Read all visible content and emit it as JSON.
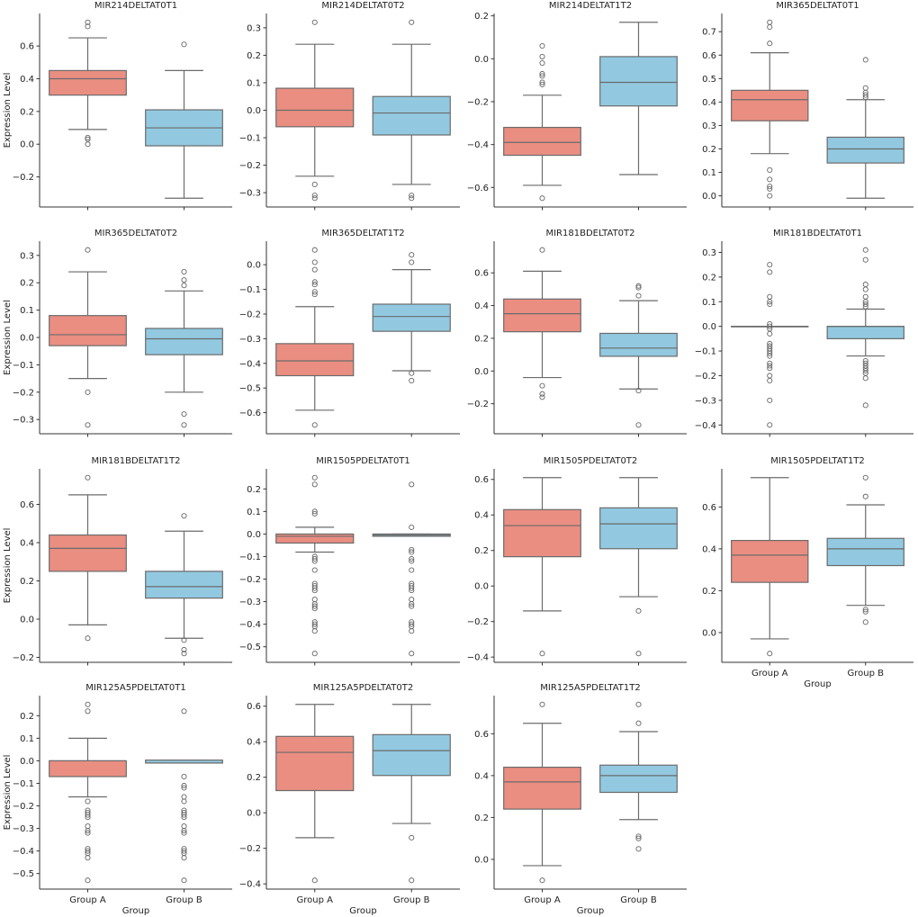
{
  "chart_data": {
    "type": "box",
    "layout": {
      "columns": 4,
      "rows": 4
    },
    "ylabel": "Expression Level",
    "xlabel": "Group",
    "categories": [
      "Group A",
      "Group B"
    ],
    "colors": {
      "Group A": "#ea8e82",
      "Group B": "#92c9e0",
      "lines": "#6b6b6b"
    },
    "panels": [
      {
        "title": "MIR214DELTAT0T1",
        "yticks": [
          -0.2,
          0.0,
          0.2,
          0.4,
          0.6
        ],
        "boxes": [
          {
            "group": "Group A",
            "whislo": 0.09,
            "q1": 0.3,
            "med": 0.4,
            "q3": 0.45,
            "whishi": 0.65,
            "fliers": [
              0.745,
              0.72,
              0.04,
              0.03,
              0.0
            ]
          },
          {
            "group": "Group B",
            "whislo": -0.33,
            "q1": -0.01,
            "med": 0.1,
            "q3": 0.21,
            "whishi": 0.45,
            "fliers": [
              0.61
            ]
          }
        ]
      },
      {
        "title": "MIR214DELTAT0T2",
        "yticks": [
          -0.3,
          -0.2,
          -0.1,
          0.0,
          0.1,
          0.2,
          0.3
        ],
        "boxes": [
          {
            "group": "Group A",
            "whislo": -0.24,
            "q1": -0.06,
            "med": 0.0,
            "q3": 0.08,
            "whishi": 0.24,
            "fliers": [
              0.32,
              -0.27,
              -0.31,
              -0.32
            ]
          },
          {
            "group": "Group B",
            "whislo": -0.27,
            "q1": -0.09,
            "med": -0.01,
            "q3": 0.05,
            "whishi": 0.24,
            "fliers": [
              0.32,
              -0.31,
              -0.32
            ]
          }
        ]
      },
      {
        "title": "MIR214DELTAT1T2",
        "yticks": [
          -0.6,
          -0.4,
          -0.2,
          0.0,
          0.2
        ],
        "boxes": [
          {
            "group": "Group A",
            "whislo": -0.59,
            "q1": -0.45,
            "med": -0.39,
            "q3": -0.32,
            "whishi": -0.17,
            "fliers": [
              0.06,
              0.01,
              -0.02,
              -0.07,
              -0.08,
              -0.11,
              -0.12,
              -0.65
            ]
          },
          {
            "group": "Group B",
            "whislo": -0.54,
            "q1": -0.22,
            "med": -0.11,
            "q3": 0.01,
            "whishi": 0.17,
            "fliers": []
          }
        ]
      },
      {
        "title": "MIR365DELTAT0T1",
        "yticks": [
          0.0,
          0.1,
          0.2,
          0.3,
          0.4,
          0.5,
          0.6,
          0.7
        ],
        "boxes": [
          {
            "group": "Group A",
            "whislo": 0.18,
            "q1": 0.32,
            "med": 0.41,
            "q3": 0.45,
            "whishi": 0.61,
            "fliers": [
              0.74,
              0.72,
              0.65,
              0.11,
              0.07,
              0.04,
              0.03,
              0.0
            ]
          },
          {
            "group": "Group B",
            "whislo": -0.01,
            "q1": 0.14,
            "med": 0.2,
            "q3": 0.25,
            "whishi": 0.41,
            "fliers": [
              0.58,
              0.46,
              0.44,
              0.43,
              0.42
            ]
          }
        ]
      },
      {
        "title": "MIR365DELTAT0T2",
        "yticks": [
          -0.3,
          -0.2,
          -0.1,
          0.0,
          0.1,
          0.2,
          0.3
        ],
        "boxes": [
          {
            "group": "Group A",
            "whislo": -0.15,
            "q1": -0.03,
            "med": 0.01,
            "q3": 0.08,
            "whishi": 0.24,
            "fliers": [
              0.32,
              -0.2,
              -0.32
            ]
          },
          {
            "group": "Group B",
            "whislo": -0.2,
            "q1": -0.063,
            "med": -0.005,
            "q3": 0.033,
            "whishi": 0.17,
            "fliers": [
              0.24,
              0.21,
              0.19,
              -0.28,
              -0.32
            ]
          }
        ]
      },
      {
        "title": "MIR365DELTAT1T2",
        "yticks": [
          -0.6,
          -0.5,
          -0.4,
          -0.3,
          -0.2,
          -0.1,
          0.0
        ],
        "boxes": [
          {
            "group": "Group A",
            "whislo": -0.59,
            "q1": -0.45,
            "med": -0.39,
            "q3": -0.32,
            "whishi": -0.17,
            "fliers": [
              0.06,
              0.01,
              -0.02,
              -0.07,
              -0.08,
              -0.11,
              -0.12,
              -0.65
            ]
          },
          {
            "group": "Group B",
            "whislo": -0.43,
            "q1": -0.27,
            "med": -0.21,
            "q3": -0.16,
            "whishi": -0.02,
            "fliers": [
              0.04,
              0.01,
              -0.44,
              -0.47
            ]
          }
        ]
      },
      {
        "title": "MIR181BDELTAT0T2",
        "yticks": [
          -0.2,
          0.0,
          0.2,
          0.4,
          0.6
        ],
        "boxes": [
          {
            "group": "Group A",
            "whislo": -0.04,
            "q1": 0.24,
            "med": 0.35,
            "q3": 0.44,
            "whishi": 0.61,
            "fliers": [
              0.74,
              -0.09,
              -0.14,
              -0.16
            ]
          },
          {
            "group": "Group B",
            "whislo": -0.11,
            "q1": 0.09,
            "med": 0.14,
            "q3": 0.23,
            "whishi": 0.43,
            "fliers": [
              0.52,
              0.51,
              0.46,
              -0.12,
              -0.33
            ]
          }
        ]
      },
      {
        "title": "MIR181BDELTAT0T1",
        "yticks": [
          -0.4,
          -0.3,
          -0.2,
          -0.1,
          0.0,
          0.1,
          0.2,
          0.3
        ],
        "boxes": [
          {
            "group": "Group A",
            "whislo": 0.0,
            "q1": 0.0,
            "med": 0.0,
            "q3": 0.0,
            "whishi": 0.0,
            "fliers": [
              0.25,
              0.22,
              0.12,
              0.1,
              0.09,
              0.01,
              0.0,
              -0.01,
              -0.03,
              -0.07,
              -0.08,
              -0.09,
              -0.1,
              -0.11,
              -0.12,
              -0.15,
              -0.16,
              -0.17,
              -0.2,
              -0.22,
              -0.3,
              -0.4
            ]
          },
          {
            "group": "Group B",
            "whislo": -0.12,
            "q1": -0.05,
            "med": 0.0,
            "q3": 0.0,
            "whishi": 0.07,
            "fliers": [
              0.31,
              0.27,
              0.17,
              0.15,
              0.12,
              0.1,
              0.09,
              0.08,
              -0.14,
              -0.15,
              -0.16,
              -0.17,
              -0.18,
              -0.19,
              -0.21,
              -0.32
            ]
          }
        ]
      },
      {
        "title": "MIR181BDELTAT1T2",
        "yticks": [
          -0.2,
          0.0,
          0.2,
          0.4,
          0.6
        ],
        "boxes": [
          {
            "group": "Group A",
            "whislo": -0.03,
            "q1": 0.25,
            "med": 0.37,
            "q3": 0.44,
            "whishi": 0.65,
            "fliers": [
              0.74,
              -0.1
            ]
          },
          {
            "group": "Group B",
            "whislo": -0.1,
            "q1": 0.11,
            "med": 0.17,
            "q3": 0.25,
            "whishi": 0.46,
            "fliers": [
              0.54,
              -0.11,
              -0.16,
              -0.18
            ]
          }
        ]
      },
      {
        "title": "MIR1505PDELTAT0T1",
        "yticks": [
          -0.5,
          -0.4,
          -0.3,
          -0.2,
          -0.1,
          0.0,
          0.1,
          0.2
        ],
        "boxes": [
          {
            "group": "Group A",
            "whislo": -0.08,
            "q1": -0.04,
            "med": -0.01,
            "q3": 0.0,
            "whishi": 0.03,
            "fliers": [
              0.25,
              0.22,
              0.1,
              0.09,
              -0.1,
              -0.11,
              -0.12,
              -0.16,
              -0.22,
              -0.23,
              -0.24,
              -0.25,
              -0.29,
              -0.31,
              -0.32,
              -0.33,
              -0.39,
              -0.4,
              -0.41,
              -0.43,
              -0.53
            ]
          },
          {
            "group": "Group B",
            "whislo": -0.01,
            "q1": -0.01,
            "med": -0.005,
            "q3": 0.0,
            "whishi": 0.0,
            "fliers": [
              0.22,
              0.03,
              -0.07,
              -0.08,
              -0.11,
              -0.12,
              -0.16,
              -0.22,
              -0.23,
              -0.24,
              -0.25,
              -0.29,
              -0.31,
              -0.32,
              -0.39,
              -0.4,
              -0.41,
              -0.43,
              -0.53
            ]
          }
        ]
      },
      {
        "title": "MIR1505PDELTAT0T2",
        "yticks": [
          -0.4,
          -0.2,
          0.0,
          0.2,
          0.4,
          0.6
        ],
        "boxes": [
          {
            "group": "Group A",
            "whislo": -0.14,
            "q1": 0.165,
            "med": 0.34,
            "q3": 0.43,
            "whishi": 0.61,
            "fliers": [
              -0.38
            ]
          },
          {
            "group": "Group B",
            "whislo": -0.06,
            "q1": 0.21,
            "med": 0.35,
            "q3": 0.44,
            "whishi": 0.61,
            "fliers": [
              -0.14,
              -0.38
            ]
          }
        ]
      },
      {
        "title": "MIR1505PDELTAT1T2",
        "yticks": [
          0.0,
          0.2,
          0.4,
          0.6
        ],
        "boxes": [
          {
            "group": "Group A",
            "whislo": -0.03,
            "q1": 0.24,
            "med": 0.37,
            "q3": 0.44,
            "whishi": 0.74,
            "fliers": [
              -0.1
            ]
          },
          {
            "group": "Group B",
            "whislo": 0.13,
            "q1": 0.32,
            "med": 0.4,
            "q3": 0.45,
            "whishi": 0.61,
            "fliers": [
              0.74,
              0.65,
              0.11,
              0.1,
              0.05
            ]
          }
        ]
      },
      {
        "title": "MIR125A5PDELTAT0T1",
        "yticks": [
          -0.5,
          -0.4,
          -0.3,
          -0.2,
          -0.1,
          0.0,
          0.1,
          0.2
        ],
        "boxes": [
          {
            "group": "Group A",
            "whislo": -0.16,
            "q1": -0.07,
            "med": 0.0,
            "q3": 0.0,
            "whishi": 0.1,
            "fliers": [
              0.25,
              0.22,
              -0.18,
              -0.22,
              -0.23,
              -0.24,
              -0.25,
              -0.29,
              -0.31,
              -0.32,
              -0.39,
              -0.4,
              -0.41,
              -0.43,
              -0.53
            ]
          },
          {
            "group": "Group B",
            "whislo": -0.01,
            "q1": -0.01,
            "med": -0.01,
            "q3": 0.003,
            "whishi": 0.003,
            "fliers": [
              0.22,
              -0.07,
              -0.11,
              -0.12,
              -0.16,
              -0.18,
              -0.22,
              -0.23,
              -0.24,
              -0.25,
              -0.29,
              -0.31,
              -0.32,
              -0.39,
              -0.4,
              -0.41,
              -0.43,
              -0.53
            ]
          }
        ]
      },
      {
        "title": "MIR125A5PDELTAT0T2",
        "yticks": [
          -0.4,
          -0.2,
          0.0,
          0.2,
          0.4,
          0.6
        ],
        "boxes": [
          {
            "group": "Group A",
            "whislo": -0.14,
            "q1": 0.125,
            "med": 0.34,
            "q3": 0.43,
            "whishi": 0.61,
            "fliers": [
              -0.38
            ]
          },
          {
            "group": "Group B",
            "whislo": -0.06,
            "q1": 0.21,
            "med": 0.35,
            "q3": 0.44,
            "whishi": 0.61,
            "fliers": [
              -0.14,
              -0.38
            ]
          }
        ]
      },
      {
        "title": "MIR125A5PDELTAT1T2",
        "yticks": [
          0.0,
          0.2,
          0.4,
          0.6
        ],
        "boxes": [
          {
            "group": "Group A",
            "whislo": -0.03,
            "q1": 0.24,
            "med": 0.37,
            "q3": 0.44,
            "whishi": 0.65,
            "fliers": [
              0.74,
              -0.1
            ]
          },
          {
            "group": "Group B",
            "whislo": 0.19,
            "q1": 0.32,
            "med": 0.4,
            "q3": 0.45,
            "whishi": 0.61,
            "fliers": [
              0.74,
              0.65,
              0.11,
              0.1,
              0.05
            ]
          }
        ]
      }
    ]
  }
}
